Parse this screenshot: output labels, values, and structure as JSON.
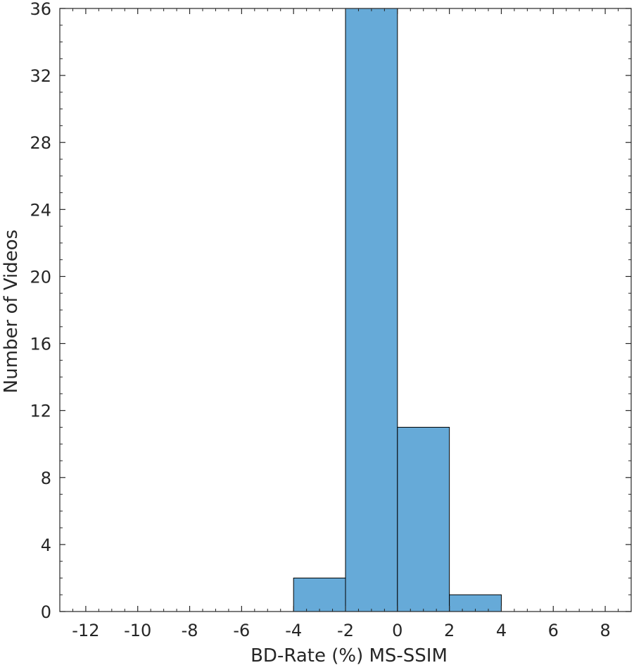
{
  "chart_data": {
    "type": "bar",
    "subtype": "histogram",
    "title": "",
    "xlabel": "BD-Rate (%) MS-SSIM",
    "ylabel": "Number of Videos",
    "xlim": [
      -13,
      9
    ],
    "ylim": [
      0,
      36
    ],
    "xticks": [
      -12,
      -10,
      -8,
      -6,
      -4,
      -2,
      0,
      2,
      4,
      6,
      8
    ],
    "xtick_labels": [
      "-12",
      "-10",
      "-8",
      "-6",
      "-4",
      "-2",
      "0",
      "2",
      "4",
      "6",
      "8"
    ],
    "yticks": [
      0,
      4,
      8,
      12,
      16,
      20,
      24,
      28,
      32,
      36
    ],
    "ytick_labels": [
      "0",
      "4",
      "8",
      "12",
      "16",
      "20",
      "24",
      "28",
      "32",
      "36"
    ],
    "bins": [
      {
        "x0": -4,
        "x1": -2,
        "count": 2
      },
      {
        "x0": -2,
        "x1": 0,
        "count": 36
      },
      {
        "x0": 0,
        "x1": 2,
        "count": 11
      },
      {
        "x0": 2,
        "x1": 4,
        "count": 1
      }
    ],
    "bar_color": "#66aad8",
    "edge_color": "#000000",
    "grid": false,
    "legend": "none"
  }
}
